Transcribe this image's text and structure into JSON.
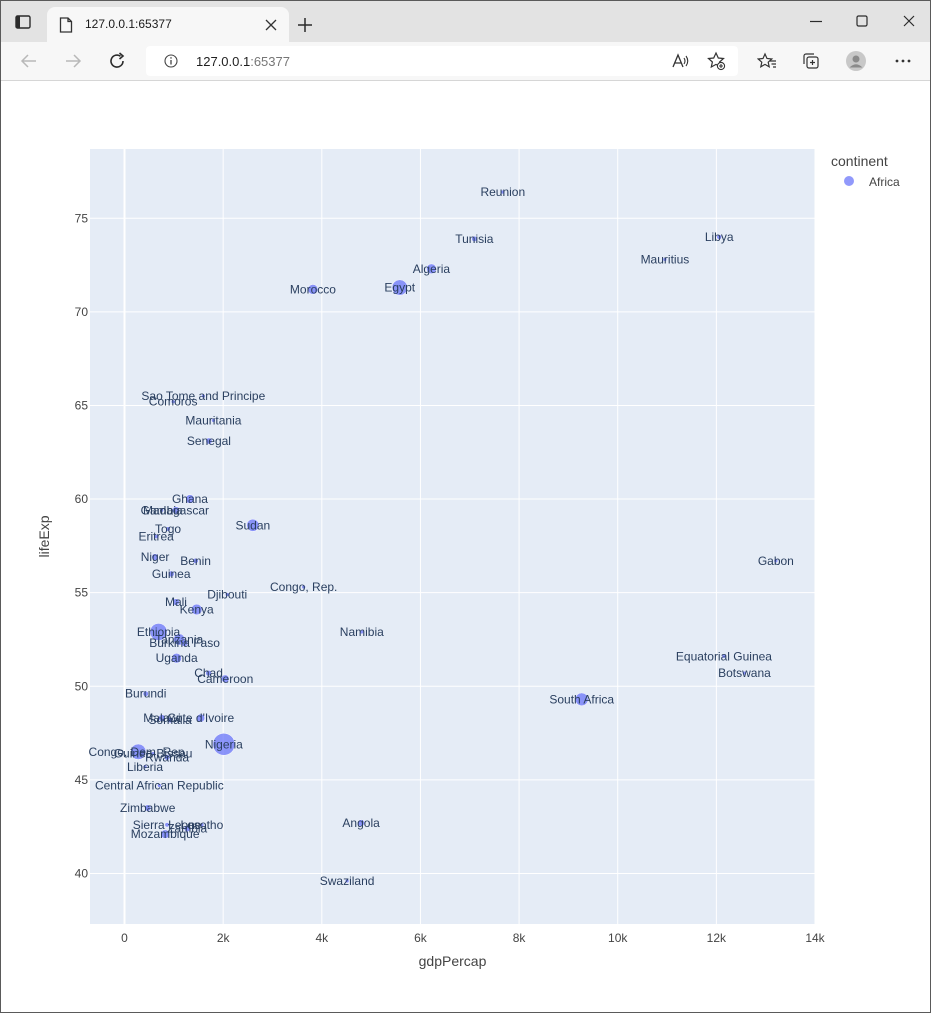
{
  "browser": {
    "tab_title": "127.0.0.1:65377",
    "address_host": "127.0.0.1",
    "address_port": ":65377"
  },
  "chart_data": {
    "type": "scatter",
    "xlabel": "gdpPercap",
    "ylabel": "lifeExp",
    "xlim": [
      -700,
      14000
    ],
    "ylim": [
      37.3,
      78.7
    ],
    "x_ticks": [
      0,
      2000,
      4000,
      6000,
      8000,
      10000,
      12000,
      14000
    ],
    "x_tick_labels": [
      "0",
      "2k",
      "4k",
      "6k",
      "8k",
      "10k",
      "12k",
      "14k"
    ],
    "y_ticks": [
      40,
      45,
      50,
      55,
      60,
      65,
      70,
      75
    ],
    "y_tick_labels": [
      "40",
      "45",
      "50",
      "55",
      "60",
      "65",
      "70",
      "75"
    ],
    "grid": true,
    "legend": {
      "title": "continent",
      "placement": "top-right",
      "entries": [
        "Africa"
      ]
    },
    "marker_color": "#636efa",
    "plot_bg": "#e5ecf6",
    "series": [
      {
        "name": "Africa",
        "points": [
          {
            "label": "Reunion",
            "x": 7670,
            "y": 76.4,
            "size": 0.7
          },
          {
            "label": "Tunisia",
            "x": 7093,
            "y": 73.9,
            "size": 1.8
          },
          {
            "label": "Libya",
            "x": 12057,
            "y": 74.0,
            "size": 1.4
          },
          {
            "label": "Mauritius",
            "x": 10957,
            "y": 72.8,
            "size": 0.8
          },
          {
            "label": "Algeria",
            "x": 6223,
            "y": 72.3,
            "size": 5.6
          },
          {
            "label": "Egypt",
            "x": 5581,
            "y": 71.3,
            "size": 14
          },
          {
            "label": "Morocco",
            "x": 3820,
            "y": 71.2,
            "size": 5.7
          },
          {
            "label": "Sao Tome and Principe",
            "x": 1598,
            "y": 65.5,
            "size": 0.3
          },
          {
            "label": "Comoros",
            "x": 986,
            "y": 65.2,
            "size": 0.5
          },
          {
            "label": "Mauritania",
            "x": 1803,
            "y": 64.2,
            "size": 0.6
          },
          {
            "label": "Senegal",
            "x": 1712,
            "y": 63.1,
            "size": 2.3
          },
          {
            "label": "Ghana",
            "x": 1327,
            "y": 60.0,
            "size": 4.5
          },
          {
            "label": "Madagascar",
            "x": 1044,
            "y": 59.4,
            "size": 3.2
          },
          {
            "label": "Gambia",
            "x": 753,
            "y": 59.4,
            "size": 0.3
          },
          {
            "label": "Sudan",
            "x": 2602,
            "y": 58.6,
            "size": 8.8
          },
          {
            "label": "Togo",
            "x": 883,
            "y": 58.4,
            "size": 1.2
          },
          {
            "label": "Eritrea",
            "x": 641,
            "y": 58.0,
            "size": 1.0
          },
          {
            "label": "Niger",
            "x": 619,
            "y": 56.9,
            "size": 2.7
          },
          {
            "label": "Benin",
            "x": 1441,
            "y": 56.7,
            "size": 1.7
          },
          {
            "label": "Gabon",
            "x": 13206,
            "y": 56.7,
            "size": 0.3
          },
          {
            "label": "Guinea",
            "x": 946,
            "y": 56.0,
            "size": 2.1
          },
          {
            "label": "Congo, Rep.",
            "x": 3633,
            "y": 55.3,
            "size": 0.8
          },
          {
            "label": "Djibouti",
            "x": 2082,
            "y": 54.9,
            "size": 0.1
          },
          {
            "label": "Mali",
            "x": 1043,
            "y": 54.5,
            "size": 2.6
          },
          {
            "label": "Kenya",
            "x": 1463,
            "y": 54.1,
            "size": 6.7
          },
          {
            "label": "Ethiopia",
            "x": 690,
            "y": 52.9,
            "size": 17
          },
          {
            "label": "Namibia",
            "x": 4811,
            "y": 52.9,
            "size": 0.4
          },
          {
            "label": "Tanzania",
            "x": 1108,
            "y": 52.5,
            "size": 7.5
          },
          {
            "label": "Burkina Faso",
            "x": 1217,
            "y": 52.3,
            "size": 2.6
          },
          {
            "label": "Equatorial Guinea",
            "x": 12154,
            "y": 51.6,
            "size": 0.1
          },
          {
            "label": "Uganda",
            "x": 1056,
            "y": 51.5,
            "size": 5.6
          },
          {
            "label": "Botswana",
            "x": 12570,
            "y": 50.7,
            "size": 0.3
          },
          {
            "label": "Chad",
            "x": 1704,
            "y": 50.7,
            "size": 1.9
          },
          {
            "label": "Cameroon",
            "x": 2042,
            "y": 50.4,
            "size": 3.5
          },
          {
            "label": "Burundi",
            "x": 430,
            "y": 49.6,
            "size": 1.7
          },
          {
            "label": "South Africa",
            "x": 9270,
            "y": 49.3,
            "size": 9.6
          },
          {
            "label": "Cote d'Ivoire",
            "x": 1545,
            "y": 48.3,
            "size": 3.8
          },
          {
            "label": "Malawi",
            "x": 759,
            "y": 48.3,
            "size": 2.7
          },
          {
            "label": "Somalia",
            "x": 926,
            "y": 48.2,
            "size": 1.9
          },
          {
            "label": "Nigeria",
            "x": 2014,
            "y": 46.9,
            "size": 28
          },
          {
            "label": "Congo, Dem. Rep.",
            "x": 278,
            "y": 46.5,
            "size": 14
          },
          {
            "label": "Guinea-Bissau",
            "x": 579,
            "y": 46.4,
            "size": 0.3
          },
          {
            "label": "Rwanda",
            "x": 863,
            "y": 46.2,
            "size": 1.9
          },
          {
            "label": "Liberia",
            "x": 415,
            "y": 45.7,
            "size": 0.6
          },
          {
            "label": "Central African Republic",
            "x": 706,
            "y": 44.7,
            "size": 0.9
          },
          {
            "label": "Zimbabwe",
            "x": 470,
            "y": 43.5,
            "size": 2.4
          },
          {
            "label": "Angola",
            "x": 4797,
            "y": 42.7,
            "size": 2.6
          },
          {
            "label": "Sierra Leone",
            "x": 863,
            "y": 42.6,
            "size": 1.2
          },
          {
            "label": "Lesotho",
            "x": 1569,
            "y": 42.6,
            "size": 0.4
          },
          {
            "label": "Zambia",
            "x": 1271,
            "y": 42.4,
            "size": 2.3
          },
          {
            "label": "Mozambique",
            "x": 824,
            "y": 42.1,
            "size": 4.4
          },
          {
            "label": "Swaziland",
            "x": 4513,
            "y": 39.6,
            "size": 0.2
          }
        ]
      }
    ]
  }
}
